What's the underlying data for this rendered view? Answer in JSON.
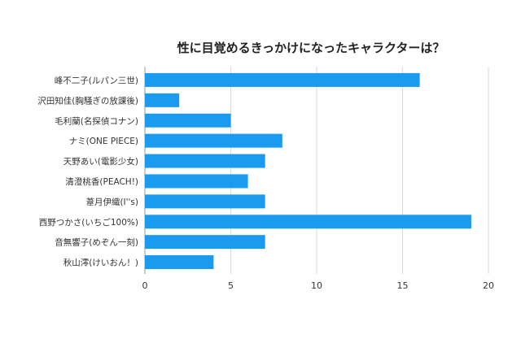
{
  "chart_data": {
    "type": "bar",
    "orientation": "horizontal",
    "title": "性に目覚めるきっかけになったキャラクターは？",
    "xlabel": "",
    "ylabel": "",
    "categories": [
      "峰不二子(ルパン三世)",
      "沢田知佳(胸騒ぎの放課後)",
      "毛利蘭(名探偵コナン)",
      "ナミ(ONE PIECE)",
      "天野あい(電影少女)",
      "清澄桃香(PEACH!)",
      "葦月伊織(I''s)",
      "西野つかさ(いちご100%)",
      "音無響子(めぞん一刻)",
      "秋山澪(けいおん！)"
    ],
    "values": [
      16,
      2,
      5,
      8,
      7,
      6,
      7,
      19,
      7,
      4
    ],
    "xlim": [
      0,
      20
    ],
    "xticks": [
      "0",
      "5",
      "10",
      "15",
      "20"
    ],
    "grid": true,
    "legend": "none",
    "bar_color": "#1a9bf0",
    "grid_color": "#d9d9d9"
  }
}
